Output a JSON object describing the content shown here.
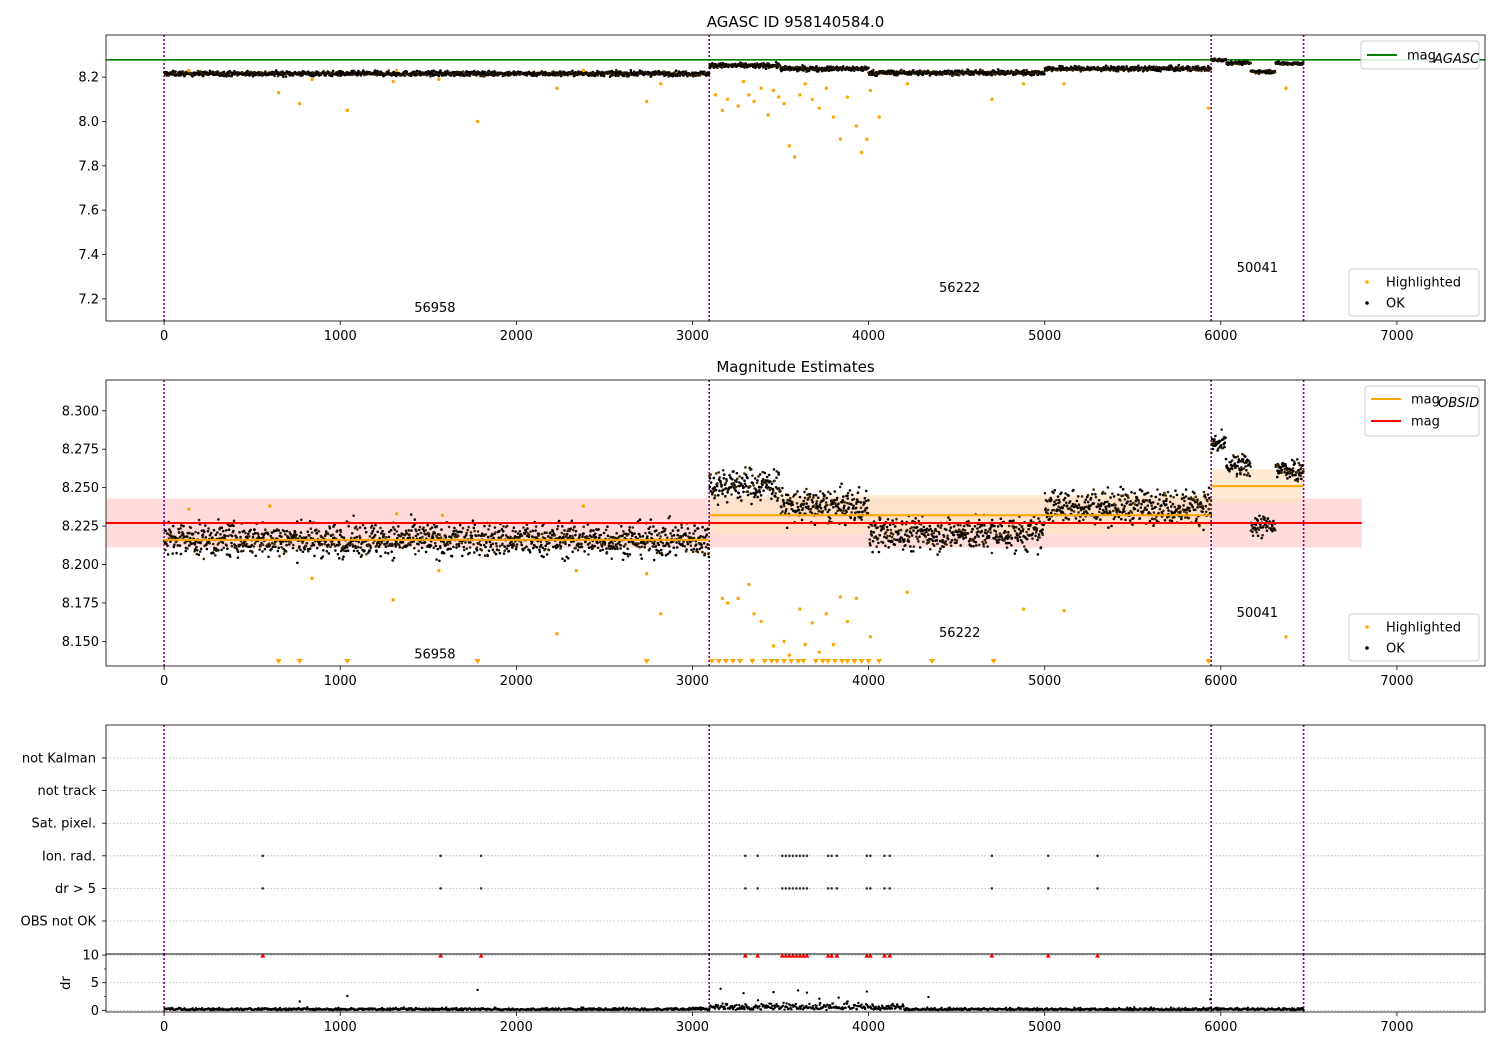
{
  "chart_data": [
    {
      "type": "scatter",
      "title": "AGASC ID 958140584.0",
      "xlim": [
        -330,
        7500
      ],
      "ylim": [
        7.1,
        8.39
      ],
      "xticks": [
        0,
        1000,
        2000,
        3000,
        4000,
        5000,
        6000,
        7000
      ],
      "yticks": [
        7.2,
        7.4,
        7.6,
        7.8,
        8.0,
        8.2
      ],
      "ytick_labels": [
        "7.2",
        "7.4",
        "7.6",
        "7.8",
        "8.0",
        "8.2"
      ],
      "obsid_boundaries": [
        0,
        3095,
        5945,
        6470
      ],
      "obsid_labels": [
        {
          "text": "56958",
          "x": 1420,
          "y": 7.14
        },
        {
          "text": "56222",
          "x": 4400,
          "y": 7.23
        },
        {
          "text": "50041",
          "x": 6090,
          "y": 7.32
        }
      ],
      "lines": [
        {
          "name": "mag",
          "subscript": "AGASC",
          "y": 8.278,
          "x": [
            -330,
            7500
          ],
          "color": "#008000"
        }
      ],
      "ok_segments": [
        {
          "x": [
            0,
            3095
          ],
          "level": 8.216,
          "spread": 0.012
        },
        {
          "x": [
            3095,
            3500
          ],
          "level": 8.252,
          "spread": 0.012
        },
        {
          "x": [
            3500,
            4000
          ],
          "level": 8.238,
          "spread": 0.012
        },
        {
          "x": [
            4000,
            5000
          ],
          "level": 8.22,
          "spread": 0.012
        },
        {
          "x": [
            5000,
            5945
          ],
          "level": 8.238,
          "spread": 0.012
        },
        {
          "x": [
            5945,
            6030
          ],
          "level": 8.278,
          "spread": 0.008
        },
        {
          "x": [
            6030,
            6170
          ],
          "level": 8.264,
          "spread": 0.008
        },
        {
          "x": [
            6170,
            6310
          ],
          "level": 8.225,
          "spread": 0.008
        },
        {
          "x": [
            6310,
            6470
          ],
          "level": 8.262,
          "spread": 0.008
        }
      ],
      "highlighted": {
        "x": [
          140,
          650,
          770,
          840,
          1040,
          1300,
          1320,
          1560,
          1780,
          2230,
          2380,
          2740,
          2820,
          3130,
          3170,
          3200,
          3260,
          3290,
          3320,
          3350,
          3390,
          3430,
          3460,
          3490,
          3520,
          3550,
          3580,
          3610,
          3640,
          3680,
          3720,
          3760,
          3800,
          3840,
          3880,
          3930,
          3960,
          3990,
          4010,
          4060,
          4220,
          4700,
          4880,
          5110,
          5930,
          6370
        ],
        "y": [
          8.23,
          8.13,
          8.08,
          8.19,
          8.05,
          8.18,
          8.23,
          8.19,
          8.0,
          8.15,
          8.23,
          8.09,
          8.17,
          8.12,
          8.05,
          8.1,
          8.07,
          8.18,
          8.12,
          8.09,
          8.15,
          8.03,
          8.14,
          8.11,
          8.08,
          7.89,
          7.84,
          8.12,
          8.17,
          8.1,
          8.06,
          8.15,
          8.02,
          7.92,
          8.11,
          7.98,
          7.86,
          7.92,
          8.14,
          8.02,
          8.17,
          8.1,
          8.17,
          8.17,
          8.06,
          8.15
        ]
      },
      "legend": {
        "position": "upper-right",
        "entries": [
          {
            "label": "mag",
            "subscript": "AGASC"
          }
        ]
      },
      "legend2": {
        "position": "lower-right",
        "entries": [
          {
            "label": "Highlighted"
          },
          {
            "label": "OK"
          }
        ]
      }
    },
    {
      "type": "scatter",
      "title": "Magnitude Estimates",
      "xlim": [
        -330,
        7500
      ],
      "ylim": [
        8.134,
        8.32
      ],
      "xticks": [
        0,
        1000,
        2000,
        3000,
        4000,
        5000,
        6000,
        7000
      ],
      "yticks": [
        8.15,
        8.175,
        8.2,
        8.225,
        8.25,
        8.275,
        8.3
      ],
      "ytick_labels": [
        "8.150",
        "8.175",
        "8.200",
        "8.225",
        "8.250",
        "8.275",
        "8.300"
      ],
      "obsid_boundaries": [
        0,
        3095,
        5945,
        6470
      ],
      "obsid_labels": [
        {
          "text": "56958",
          "x": 1420,
          "y": 8.139
        },
        {
          "text": "56222",
          "x": 4400,
          "y": 8.153
        },
        {
          "text": "50041",
          "x": 6090,
          "y": 8.166
        }
      ],
      "bands": [
        {
          "x": [
            -330,
            6800
          ],
          "y": [
            8.211,
            8.243
          ],
          "color": "#ffcccc"
        },
        {
          "x": [
            3095,
            5945
          ],
          "y": [
            8.22,
            8.245
          ],
          "color": "#ffe2c0"
        },
        {
          "x": [
            5945,
            6470
          ],
          "y": [
            8.24,
            8.262
          ],
          "color": "#ffe2c0"
        }
      ],
      "lines": [
        {
          "name": "mag",
          "subscript": "OBSID",
          "y": 8.216,
          "x": [
            0,
            3095
          ],
          "color": "#ffa500"
        },
        {
          "name": "mag",
          "subscript": "OBSID",
          "y": 8.232,
          "x": [
            3095,
            5945
          ],
          "color": "#ffa500"
        },
        {
          "name": "mag",
          "subscript": "OBSID",
          "y": 8.251,
          "x": [
            5945,
            6470
          ],
          "color": "#ffa500"
        },
        {
          "name": "mag",
          "y": 8.227,
          "x": [
            -330,
            6800
          ],
          "color": "#ff0000"
        }
      ],
      "ok_segments": [
        {
          "x": [
            0,
            3095
          ],
          "level": 8.216,
          "spread": 0.012
        },
        {
          "x": [
            3095,
            3500
          ],
          "level": 8.252,
          "spread": 0.012
        },
        {
          "x": [
            3500,
            4000
          ],
          "level": 8.238,
          "spread": 0.012
        },
        {
          "x": [
            4000,
            5000
          ],
          "level": 8.22,
          "spread": 0.012
        },
        {
          "x": [
            5000,
            5945
          ],
          "level": 8.238,
          "spread": 0.012
        },
        {
          "x": [
            5945,
            6030
          ],
          "level": 8.278,
          "spread": 0.008
        },
        {
          "x": [
            6030,
            6170
          ],
          "level": 8.264,
          "spread": 0.008
        },
        {
          "x": [
            6170,
            6310
          ],
          "level": 8.225,
          "spread": 0.008
        },
        {
          "x": [
            6310,
            6470
          ],
          "level": 8.262,
          "spread": 0.008
        }
      ],
      "highlighted": {
        "x": [
          140,
          600,
          840,
          1300,
          1320,
          1560,
          1580,
          2230,
          2340,
          2380,
          2740,
          2820,
          3170,
          3200,
          3260,
          3320,
          3350,
          3390,
          3460,
          3520,
          3550,
          3610,
          3640,
          3680,
          3720,
          3760,
          3800,
          3840,
          3880,
          3930,
          4010,
          4220,
          4880,
          5110,
          6370
        ],
        "y": [
          8.236,
          8.238,
          8.191,
          8.177,
          8.233,
          8.196,
          8.232,
          8.155,
          8.196,
          8.238,
          8.194,
          8.168,
          8.178,
          8.175,
          8.178,
          8.187,
          8.168,
          8.163,
          8.147,
          8.15,
          8.141,
          8.171,
          8.148,
          8.162,
          8.143,
          8.168,
          8.148,
          8.179,
          8.163,
          8.178,
          8.153,
          8.182,
          8.171,
          8.17,
          8.153
        ]
      },
      "clipped_low_x": [
        650,
        770,
        1040,
        1780,
        2740,
        3110,
        3150,
        3190,
        3230,
        3270,
        3340,
        3410,
        3450,
        3480,
        3520,
        3560,
        3600,
        3630,
        3700,
        3740,
        3770,
        3810,
        3850,
        3880,
        3920,
        3960,
        4000,
        4060,
        4360,
        4710,
        5930
      ],
      "legend": {
        "position": "upper-right",
        "entries": [
          {
            "label": "mag",
            "subscript": "OBSID"
          },
          {
            "label": "mag"
          }
        ]
      },
      "legend2": {
        "position": "lower-right",
        "entries": [
          {
            "label": "Highlighted"
          },
          {
            "label": "OK"
          }
        ]
      }
    },
    {
      "type": "scatter",
      "title": "",
      "xlim": [
        -330,
        7500
      ],
      "xticks": [
        0,
        1000,
        2000,
        3000,
        4000,
        5000,
        6000,
        7000
      ],
      "obsid_boundaries": [
        0,
        3095,
        5945,
        6470
      ],
      "flag_rows": [
        "not Kalman",
        "not track",
        "Sat. pixel.",
        "Ion. rad.",
        "dr > 5",
        "OBS not OK"
      ],
      "flag_points": {
        "Ion. rad.": [
          560,
          1570,
          1800,
          3300,
          3370,
          3510,
          3530,
          3550,
          3570,
          3590,
          3610,
          3630,
          3650,
          3770,
          3790,
          3820,
          3990,
          4010,
          4090,
          4120,
          4700,
          5020,
          5300
        ],
        "dr > 5": [
          560,
          1570,
          1800,
          3300,
          3370,
          3510,
          3530,
          3550,
          3570,
          3590,
          3610,
          3630,
          3650,
          3770,
          3790,
          3820,
          3990,
          4010,
          4090,
          4120,
          4700,
          5020,
          5300
        ]
      }
    },
    {
      "type": "scatter",
      "title": "",
      "ylabel": "dr",
      "xlim": [
        -330,
        7500
      ],
      "ylim": [
        -0.3,
        10.2
      ],
      "xticks": [
        0,
        1000,
        2000,
        3000,
        4000,
        5000,
        6000,
        7000
      ],
      "yticks": [
        0,
        5,
        10
      ],
      "ytick_labels": [
        "0",
        "5",
        "10"
      ],
      "obsid_boundaries": [
        0,
        3095,
        5945,
        6470
      ],
      "dr_clipped_x": [
        560,
        1570,
        1800,
        3300,
        3370,
        3510,
        3530,
        3550,
        3570,
        3590,
        3610,
        3630,
        3650,
        3770,
        3790,
        3820,
        3990,
        4010,
        4090,
        4120,
        4700,
        5020,
        5300
      ],
      "dr_outliers": {
        "x": [
          770,
          1040,
          1780,
          3160,
          3290,
          3460,
          3600,
          3650,
          3720,
          3830,
          3990,
          4340,
          5940
        ],
        "y": [
          1.6,
          2.6,
          3.7,
          3.9,
          3.1,
          3.3,
          3.6,
          3.2,
          2.1,
          2.3,
          3.4,
          2.4,
          2.0
        ]
      }
    }
  ]
}
